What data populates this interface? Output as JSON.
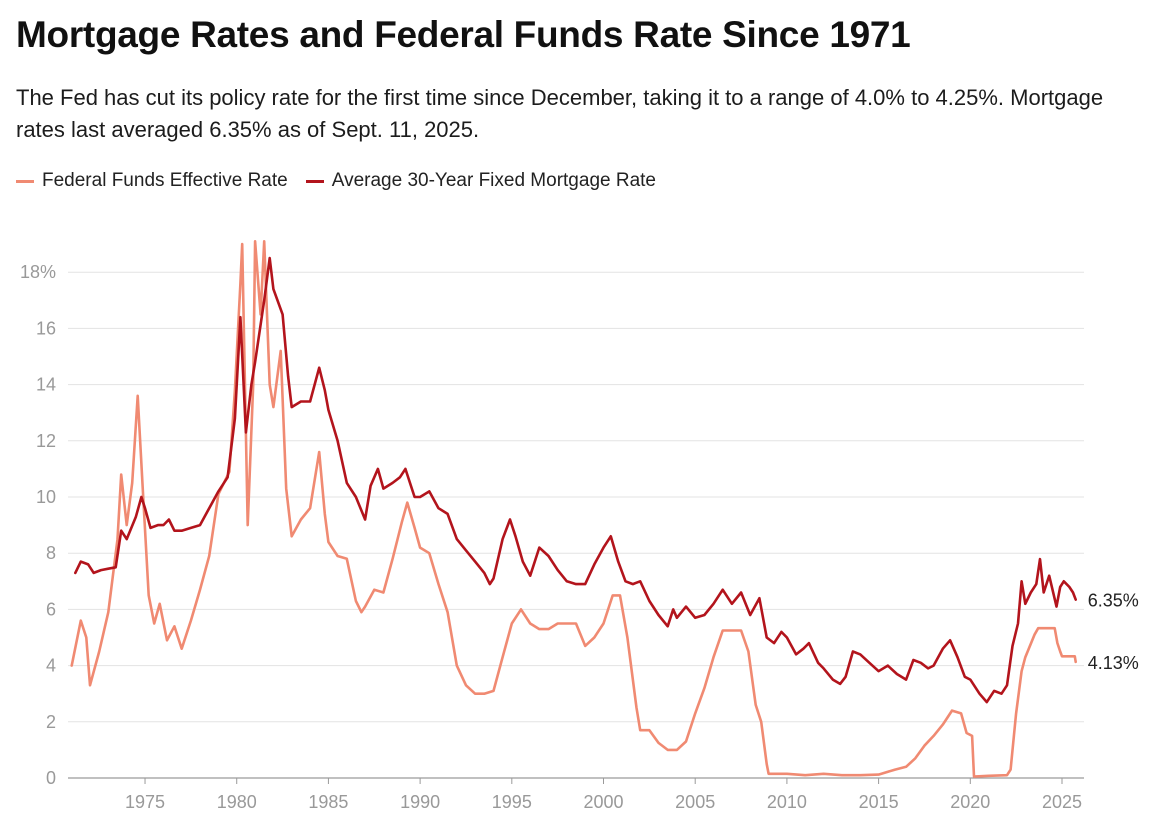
{
  "header": {
    "title": "Mortgage Rates and Federal Funds Rate Since 1971",
    "subtitle": "The Fed has cut its policy rate for the first time since December, taking it to a range of 4.0% to 4.25%. Mortgage rates last averaged 6.35% as of Sept. 11, 2025."
  },
  "legend": [
    {
      "label": "Federal Funds Effective Rate",
      "color": "#f08a72"
    },
    {
      "label": "Average 30-Year Fixed Mortgage Rate",
      "color": "#b3141c"
    }
  ],
  "chart_data": {
    "type": "line",
    "title": "Mortgage Rates and Federal Funds Rate Since 1971",
    "xlabel": "",
    "ylabel": "",
    "xlim": [
      1970.8,
      2026.2
    ],
    "ylim": [
      0,
      20
    ],
    "x_ticks": [
      1975,
      1980,
      1985,
      1990,
      1995,
      2000,
      2005,
      2010,
      2015,
      2020,
      2025
    ],
    "y_ticks": [
      {
        "value": 0,
        "label": "0"
      },
      {
        "value": 2,
        "label": "2"
      },
      {
        "value": 4,
        "label": "4"
      },
      {
        "value": 6,
        "label": "6"
      },
      {
        "value": 8,
        "label": "8"
      },
      {
        "value": 10,
        "label": "10"
      },
      {
        "value": 12,
        "label": "12"
      },
      {
        "value": 14,
        "label": "14"
      },
      {
        "value": 16,
        "label": "16"
      },
      {
        "value": 18,
        "label": "18%"
      }
    ],
    "grid": true,
    "series": [
      {
        "name": "Federal Funds Effective Rate",
        "color": "#f08a72",
        "end_label": "4.13%",
        "points": [
          [
            1971.0,
            4.0
          ],
          [
            1971.5,
            5.6
          ],
          [
            1971.8,
            5.0
          ],
          [
            1972.0,
            3.3
          ],
          [
            1972.5,
            4.5
          ],
          [
            1973.0,
            5.9
          ],
          [
            1973.5,
            8.5
          ],
          [
            1973.7,
            10.8
          ],
          [
            1974.0,
            9.0
          ],
          [
            1974.3,
            10.5
          ],
          [
            1974.6,
            13.6
          ],
          [
            1974.9,
            10.0
          ],
          [
            1975.2,
            6.5
          ],
          [
            1975.5,
            5.5
          ],
          [
            1975.8,
            6.2
          ],
          [
            1976.2,
            4.9
          ],
          [
            1976.6,
            5.4
          ],
          [
            1977.0,
            4.6
          ],
          [
            1977.5,
            5.6
          ],
          [
            1978.0,
            6.7
          ],
          [
            1978.5,
            7.9
          ],
          [
            1979.0,
            10.1
          ],
          [
            1979.6,
            10.9
          ],
          [
            1979.9,
            13.8
          ],
          [
            1980.2,
            17.6
          ],
          [
            1980.3,
            19.0
          ],
          [
            1980.6,
            9.0
          ],
          [
            1980.9,
            14.0
          ],
          [
            1981.0,
            19.1
          ],
          [
            1981.3,
            16.5
          ],
          [
            1981.5,
            19.1
          ],
          [
            1981.8,
            14.0
          ],
          [
            1982.0,
            13.2
          ],
          [
            1982.4,
            15.2
          ],
          [
            1982.7,
            10.3
          ],
          [
            1983.0,
            8.6
          ],
          [
            1983.5,
            9.2
          ],
          [
            1984.0,
            9.6
          ],
          [
            1984.5,
            11.6
          ],
          [
            1984.8,
            9.4
          ],
          [
            1985.0,
            8.4
          ],
          [
            1985.5,
            7.9
          ],
          [
            1986.0,
            7.8
          ],
          [
            1986.5,
            6.3
          ],
          [
            1986.8,
            5.9
          ],
          [
            1987.0,
            6.1
          ],
          [
            1987.5,
            6.7
          ],
          [
            1988.0,
            6.6
          ],
          [
            1988.5,
            7.8
          ],
          [
            1989.0,
            9.1
          ],
          [
            1989.3,
            9.8
          ],
          [
            1989.7,
            8.9
          ],
          [
            1990.0,
            8.2
          ],
          [
            1990.5,
            8.0
          ],
          [
            1991.0,
            6.9
          ],
          [
            1991.5,
            5.9
          ],
          [
            1992.0,
            4.0
          ],
          [
            1992.5,
            3.3
          ],
          [
            1993.0,
            3.0
          ],
          [
            1993.5,
            3.0
          ],
          [
            1994.0,
            3.1
          ],
          [
            1994.5,
            4.3
          ],
          [
            1995.0,
            5.5
          ],
          [
            1995.5,
            6.0
          ],
          [
            1996.0,
            5.5
          ],
          [
            1996.5,
            5.3
          ],
          [
            1997.0,
            5.3
          ],
          [
            1997.5,
            5.5
          ],
          [
            1998.0,
            5.5
          ],
          [
            1998.5,
            5.5
          ],
          [
            1999.0,
            4.7
          ],
          [
            1999.5,
            5.0
          ],
          [
            2000.0,
            5.5
          ],
          [
            2000.5,
            6.5
          ],
          [
            2000.9,
            6.5
          ],
          [
            2001.3,
            5.0
          ],
          [
            2001.8,
            2.5
          ],
          [
            2002.0,
            1.7
          ],
          [
            2002.5,
            1.7
          ],
          [
            2003.0,
            1.25
          ],
          [
            2003.5,
            1.0
          ],
          [
            2004.0,
            1.0
          ],
          [
            2004.5,
            1.3
          ],
          [
            2005.0,
            2.3
          ],
          [
            2005.5,
            3.2
          ],
          [
            2006.0,
            4.3
          ],
          [
            2006.5,
            5.25
          ],
          [
            2007.0,
            5.25
          ],
          [
            2007.5,
            5.25
          ],
          [
            2007.9,
            4.5
          ],
          [
            2008.3,
            2.6
          ],
          [
            2008.6,
            2.0
          ],
          [
            2008.9,
            0.5
          ],
          [
            2009.0,
            0.15
          ],
          [
            2010.0,
            0.15
          ],
          [
            2011.0,
            0.1
          ],
          [
            2012.0,
            0.15
          ],
          [
            2013.0,
            0.1
          ],
          [
            2014.0,
            0.1
          ],
          [
            2015.0,
            0.12
          ],
          [
            2015.9,
            0.3
          ],
          [
            2016.5,
            0.4
          ],
          [
            2017.0,
            0.7
          ],
          [
            2017.5,
            1.15
          ],
          [
            2018.0,
            1.5
          ],
          [
            2018.5,
            1.9
          ],
          [
            2019.0,
            2.4
          ],
          [
            2019.5,
            2.3
          ],
          [
            2019.8,
            1.6
          ],
          [
            2020.1,
            1.5
          ],
          [
            2020.2,
            0.05
          ],
          [
            2021.0,
            0.08
          ],
          [
            2022.0,
            0.1
          ],
          [
            2022.2,
            0.3
          ],
          [
            2022.5,
            2.3
          ],
          [
            2022.8,
            3.8
          ],
          [
            2023.0,
            4.3
          ],
          [
            2023.5,
            5.1
          ],
          [
            2023.7,
            5.33
          ],
          [
            2024.6,
            5.33
          ],
          [
            2024.75,
            4.8
          ],
          [
            2024.9,
            4.5
          ],
          [
            2025.0,
            4.33
          ],
          [
            2025.7,
            4.33
          ],
          [
            2025.75,
            4.13
          ]
        ]
      },
      {
        "name": "Average 30-Year Fixed Mortgage Rate",
        "color": "#b3141c",
        "end_label": "6.35%",
        "points": [
          [
            1971.2,
            7.3
          ],
          [
            1971.5,
            7.7
          ],
          [
            1971.9,
            7.6
          ],
          [
            1972.2,
            7.3
          ],
          [
            1972.6,
            7.4
          ],
          [
            1973.0,
            7.45
          ],
          [
            1973.4,
            7.5
          ],
          [
            1973.7,
            8.8
          ],
          [
            1974.0,
            8.5
          ],
          [
            1974.5,
            9.3
          ],
          [
            1974.8,
            10.0
          ],
          [
            1975.0,
            9.6
          ],
          [
            1975.3,
            8.9
          ],
          [
            1975.7,
            9.0
          ],
          [
            1976.0,
            9.0
          ],
          [
            1976.3,
            9.2
          ],
          [
            1976.6,
            8.8
          ],
          [
            1977.0,
            8.8
          ],
          [
            1977.5,
            8.9
          ],
          [
            1978.0,
            9.0
          ],
          [
            1978.5,
            9.6
          ],
          [
            1979.0,
            10.2
          ],
          [
            1979.5,
            10.7
          ],
          [
            1979.9,
            12.8
          ],
          [
            1980.2,
            16.4
          ],
          [
            1980.5,
            12.3
          ],
          [
            1980.8,
            14.0
          ],
          [
            1981.0,
            14.8
          ],
          [
            1981.5,
            17.0
          ],
          [
            1981.8,
            18.5
          ],
          [
            1982.0,
            17.4
          ],
          [
            1982.5,
            16.5
          ],
          [
            1982.8,
            14.3
          ],
          [
            1983.0,
            13.2
          ],
          [
            1983.5,
            13.4
          ],
          [
            1984.0,
            13.4
          ],
          [
            1984.5,
            14.6
          ],
          [
            1984.8,
            13.8
          ],
          [
            1985.0,
            13.1
          ],
          [
            1985.5,
            12.0
          ],
          [
            1986.0,
            10.5
          ],
          [
            1986.5,
            10.0
          ],
          [
            1987.0,
            9.2
          ],
          [
            1987.3,
            10.4
          ],
          [
            1987.7,
            11.0
          ],
          [
            1988.0,
            10.3
          ],
          [
            1988.5,
            10.5
          ],
          [
            1988.9,
            10.7
          ],
          [
            1989.2,
            11.0
          ],
          [
            1989.7,
            10.0
          ],
          [
            1990.0,
            10.0
          ],
          [
            1990.5,
            10.2
          ],
          [
            1991.0,
            9.6
          ],
          [
            1991.5,
            9.4
          ],
          [
            1992.0,
            8.5
          ],
          [
            1992.5,
            8.1
          ],
          [
            1993.0,
            7.7
          ],
          [
            1993.5,
            7.3
          ],
          [
            1993.8,
            6.9
          ],
          [
            1994.0,
            7.1
          ],
          [
            1994.5,
            8.5
          ],
          [
            1994.9,
            9.2
          ],
          [
            1995.2,
            8.6
          ],
          [
            1995.6,
            7.7
          ],
          [
            1996.0,
            7.2
          ],
          [
            1996.5,
            8.2
          ],
          [
            1997.0,
            7.9
          ],
          [
            1997.5,
            7.4
          ],
          [
            1998.0,
            7.0
          ],
          [
            1998.5,
            6.9
          ],
          [
            1999.0,
            6.9
          ],
          [
            1999.5,
            7.6
          ],
          [
            2000.0,
            8.2
          ],
          [
            2000.4,
            8.6
          ],
          [
            2000.8,
            7.7
          ],
          [
            2001.2,
            7.0
          ],
          [
            2001.6,
            6.9
          ],
          [
            2002.0,
            7.0
          ],
          [
            2002.5,
            6.3
          ],
          [
            2003.0,
            5.8
          ],
          [
            2003.5,
            5.4
          ],
          [
            2003.8,
            6.0
          ],
          [
            2004.0,
            5.7
          ],
          [
            2004.5,
            6.1
          ],
          [
            2005.0,
            5.7
          ],
          [
            2005.5,
            5.8
          ],
          [
            2006.0,
            6.2
          ],
          [
            2006.5,
            6.7
          ],
          [
            2007.0,
            6.2
          ],
          [
            2007.5,
            6.6
          ],
          [
            2008.0,
            5.8
          ],
          [
            2008.5,
            6.4
          ],
          [
            2008.9,
            5.0
          ],
          [
            2009.3,
            4.8
          ],
          [
            2009.7,
            5.2
          ],
          [
            2010.0,
            5.0
          ],
          [
            2010.5,
            4.4
          ],
          [
            2010.9,
            4.6
          ],
          [
            2011.2,
            4.8
          ],
          [
            2011.7,
            4.1
          ],
          [
            2012.0,
            3.9
          ],
          [
            2012.5,
            3.5
          ],
          [
            2012.9,
            3.35
          ],
          [
            2013.2,
            3.6
          ],
          [
            2013.6,
            4.5
          ],
          [
            2014.0,
            4.4
          ],
          [
            2014.5,
            4.1
          ],
          [
            2015.0,
            3.8
          ],
          [
            2015.5,
            4.0
          ],
          [
            2016.0,
            3.7
          ],
          [
            2016.5,
            3.5
          ],
          [
            2016.9,
            4.2
          ],
          [
            2017.3,
            4.1
          ],
          [
            2017.7,
            3.9
          ],
          [
            2018.0,
            4.0
          ],
          [
            2018.5,
            4.6
          ],
          [
            2018.9,
            4.9
          ],
          [
            2019.3,
            4.3
          ],
          [
            2019.7,
            3.6
          ],
          [
            2020.0,
            3.5
          ],
          [
            2020.5,
            3.0
          ],
          [
            2020.9,
            2.7
          ],
          [
            2021.3,
            3.1
          ],
          [
            2021.7,
            3.0
          ],
          [
            2022.0,
            3.3
          ],
          [
            2022.3,
            4.7
          ],
          [
            2022.6,
            5.5
          ],
          [
            2022.8,
            7.0
          ],
          [
            2023.0,
            6.2
          ],
          [
            2023.3,
            6.6
          ],
          [
            2023.6,
            6.9
          ],
          [
            2023.8,
            7.79
          ],
          [
            2024.0,
            6.6
          ],
          [
            2024.3,
            7.2
          ],
          [
            2024.7,
            6.1
          ],
          [
            2024.9,
            6.8
          ],
          [
            2025.1,
            7.0
          ],
          [
            2025.4,
            6.8
          ],
          [
            2025.6,
            6.6
          ],
          [
            2025.75,
            6.35
          ]
        ]
      }
    ]
  }
}
